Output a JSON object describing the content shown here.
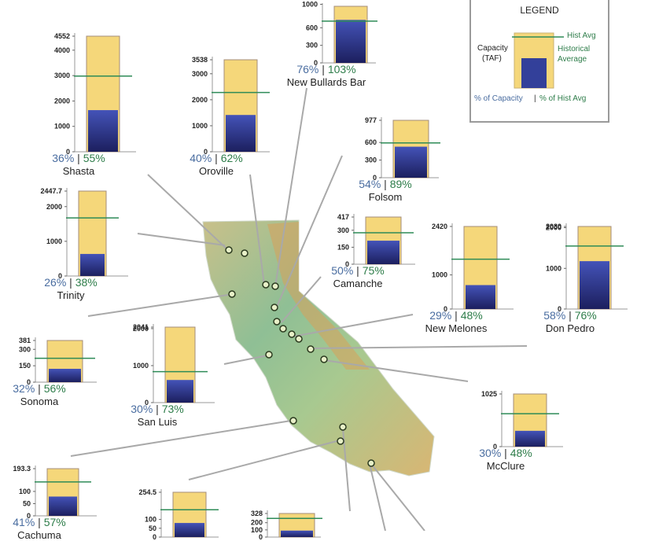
{
  "legend": {
    "title": "LEGEND",
    "capacity_label_1": "Capacity",
    "capacity_label_2": "(TAF)",
    "hist_avg": "Hist Avg",
    "historical_1": "Historical",
    "historical_2": "Average",
    "footer_cap": "% of Capacity",
    "footer_sep": "|",
    "footer_hist": "% of Hist Avg"
  },
  "colors": {
    "capacity": "#f5d77a",
    "storage_top": "#4453b8",
    "storage_bottom": "#1c1f5e",
    "hist_line": "#2e8b57",
    "map_land": "#9cc79a"
  },
  "chart_data": [
    {
      "type": "bar",
      "name": "Shasta",
      "capacity": 4552,
      "storage": 1640,
      "hist_avg": 2980,
      "ticks": [
        "0",
        "1000",
        "2000",
        "3000",
        "4000",
        "4552"
      ],
      "tick_values": [
        0,
        1000,
        2000,
        3000,
        4000,
        4552
      ],
      "pct_capacity": "36%",
      "pct_hist": "55%"
    },
    {
      "type": "bar",
      "name": "Oroville",
      "capacity": 3538,
      "storage": 1415,
      "hist_avg": 2280,
      "ticks": [
        "0",
        "1000",
        "2000",
        "3000",
        "3538"
      ],
      "tick_values": [
        0,
        1000,
        2000,
        3000,
        3538
      ],
      "pct_capacity": "40%",
      "pct_hist": "62%"
    },
    {
      "type": "bar",
      "name": "New Bullards Bar",
      "capacity": 966,
      "storage": 734,
      "hist_avg": 713,
      "ticks": [
        "0",
        "300",
        "600",
        "1000"
      ],
      "tick_values": [
        0,
        300,
        600,
        1000
      ],
      "pct_capacity": "76%",
      "pct_hist": "103%"
    },
    {
      "type": "bar",
      "name": "Folsom",
      "capacity": 977,
      "storage": 528,
      "hist_avg": 593,
      "ticks": [
        "0",
        "300",
        "600",
        "977"
      ],
      "tick_values": [
        0,
        300,
        600,
        977
      ],
      "pct_capacity": "54%",
      "pct_hist": "89%"
    },
    {
      "type": "bar",
      "name": "Trinity",
      "capacity": 2447.7,
      "storage": 636,
      "hist_avg": 1675,
      "ticks": [
        "0",
        "1000",
        "2000",
        "2447.7"
      ],
      "tick_values": [
        0,
        1000,
        2000,
        2447.7
      ],
      "pct_capacity": "26%",
      "pct_hist": "38%"
    },
    {
      "type": "bar",
      "name": "Camanche",
      "capacity": 417,
      "storage": 208,
      "hist_avg": 278,
      "ticks": [
        "0",
        "150",
        "300",
        "417"
      ],
      "tick_values": [
        0,
        150,
        300,
        417
      ],
      "pct_capacity": "50%",
      "pct_hist": "75%"
    },
    {
      "type": "bar",
      "name": "New Melones",
      "capacity": 2420,
      "storage": 702,
      "hist_avg": 1462,
      "ticks": [
        "0",
        "1000",
        "2420"
      ],
      "tick_values": [
        0,
        1000,
        2420
      ],
      "pct_capacity": "29%",
      "pct_hist": "48%"
    },
    {
      "type": "bar",
      "name": "Don Pedro",
      "capacity": 2030,
      "storage": 1177,
      "hist_avg": 1550,
      "ticks": [
        "0",
        "1000",
        "2000",
        "2030"
      ],
      "tick_values": [
        0,
        1000,
        2000,
        2030
      ],
      "pct_capacity": "58%",
      "pct_hist": "76%"
    },
    {
      "type": "bar",
      "name": "Sonoma",
      "capacity": 381,
      "storage": 122,
      "hist_avg": 218,
      "ticks": [
        "0",
        "150",
        "300",
        "381"
      ],
      "tick_values": [
        0,
        150,
        300,
        381
      ],
      "pct_capacity": "32%",
      "pct_hist": "56%"
    },
    {
      "type": "bar",
      "name": "San Luis",
      "capacity": 2041,
      "storage": 612,
      "hist_avg": 838,
      "ticks": [
        "0",
        "1000",
        "2000",
        "2041"
      ],
      "tick_values": [
        0,
        1000,
        2000,
        2041
      ],
      "pct_capacity": "30%",
      "pct_hist": "73%"
    },
    {
      "type": "bar",
      "name": "McClure",
      "capacity": 1025,
      "storage": 308,
      "hist_avg": 641,
      "ticks": [
        "0",
        "1025"
      ],
      "tick_values": [
        0,
        1025
      ],
      "pct_capacity": "30%",
      "pct_hist": "48%"
    },
    {
      "type": "bar",
      "name": "Cachuma",
      "capacity": 193.3,
      "storage": 79,
      "hist_avg": 139,
      "ticks": [
        "0",
        "50",
        "100",
        "193.3"
      ],
      "tick_values": [
        0,
        50,
        100,
        193.3
      ],
      "pct_capacity": "41%",
      "pct_hist": "57%"
    },
    {
      "type": "bar",
      "name": "",
      "capacity": 254.5,
      "storage": 80,
      "hist_avg": 155,
      "ticks": [
        "0",
        "50",
        "100",
        "254.5"
      ],
      "tick_values": [
        0,
        50,
        100,
        254.5
      ],
      "pct_capacity": "",
      "pct_hist": ""
    },
    {
      "type": "bar",
      "name": "",
      "capacity": 328,
      "storage": 90,
      "hist_avg": 260,
      "ticks": [
        "0",
        "100",
        "200",
        "328"
      ],
      "tick_values": [
        0,
        100,
        200,
        328
      ],
      "pct_capacity": "",
      "pct_hist": ""
    }
  ]
}
